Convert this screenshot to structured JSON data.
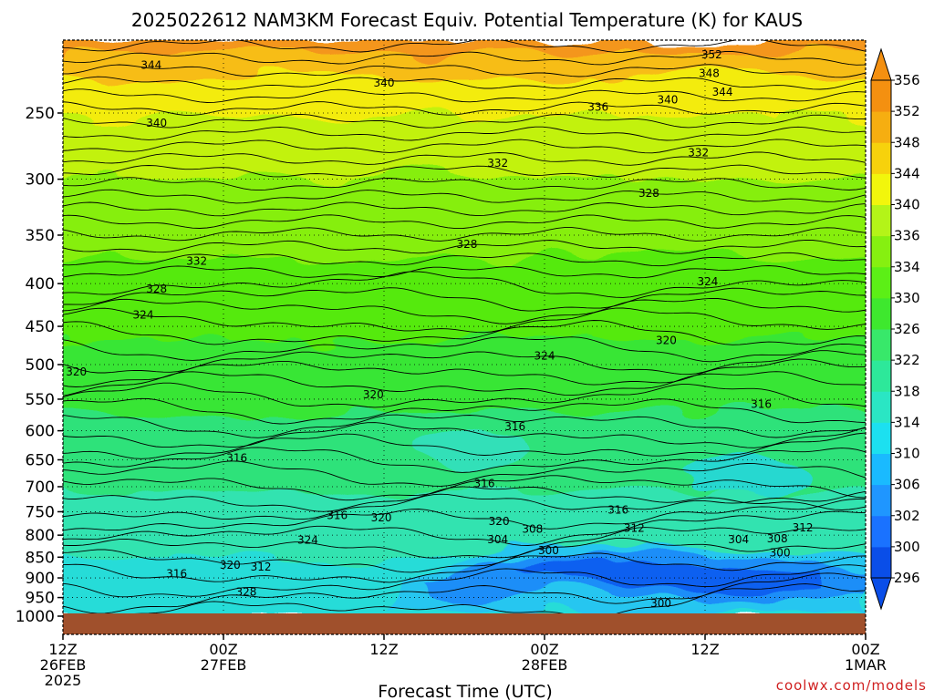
{
  "chart_data": {
    "type": "heatmap",
    "title": "2025022612 NAM3KM Forecast Equiv. Potential Temperature (K) for KAUS",
    "xlabel": "Forecast Time (UTC)",
    "ylabel": "",
    "credit": "coolwx.com/models",
    "x_ticks": [
      {
        "hours": 0,
        "lines": [
          "12Z",
          "26FEB",
          "2025"
        ]
      },
      {
        "hours": 12,
        "lines": [
          "00Z",
          "27FEB"
        ]
      },
      {
        "hours": 24,
        "lines": [
          "12Z"
        ]
      },
      {
        "hours": 36,
        "lines": [
          "00Z",
          "28FEB"
        ]
      },
      {
        "hours": 48,
        "lines": [
          "12Z"
        ]
      },
      {
        "hours": 60,
        "lines": [
          "00Z",
          "1MAR"
        ]
      }
    ],
    "x_range_hours": [
      0,
      60
    ],
    "y_ticks": [
      250,
      300,
      350,
      400,
      450,
      500,
      550,
      600,
      650,
      700,
      750,
      800,
      850,
      900,
      950,
      1000
    ],
    "y_range_hpa": [
      200,
      1000
    ],
    "colorbar": {
      "levels": [
        296,
        300,
        302,
        306,
        310,
        314,
        318,
        322,
        326,
        330,
        334,
        336,
        340,
        344,
        348,
        352,
        356
      ],
      "colors": [
        "#0a4ee8",
        "#1a72ff",
        "#1f96ff",
        "#1abaff",
        "#1ce0f0",
        "#2ae6c4",
        "#2de89a",
        "#38e86a",
        "#3ee82e",
        "#5cef16",
        "#86f010",
        "#b4f418",
        "#f2f60c",
        "#f7d20c",
        "#f6ae10",
        "#f49010"
      ]
    },
    "contour_labels": [
      {
        "value": "352",
        "t": 48.5,
        "p": 213
      },
      {
        "value": "344",
        "t": 6.6,
        "p": 219
      },
      {
        "value": "348",
        "t": 48.3,
        "p": 224
      },
      {
        "value": "340",
        "t": 24.0,
        "p": 230
      },
      {
        "value": "344",
        "t": 49.3,
        "p": 236
      },
      {
        "value": "340",
        "t": 45.2,
        "p": 241
      },
      {
        "value": "336",
        "t": 40.0,
        "p": 246
      },
      {
        "value": "340",
        "t": 7.0,
        "p": 257
      },
      {
        "value": "332",
        "t": 47.5,
        "p": 279
      },
      {
        "value": "332",
        "t": 32.5,
        "p": 287
      },
      {
        "value": "328",
        "t": 43.8,
        "p": 312
      },
      {
        "value": "328",
        "t": 30.2,
        "p": 359
      },
      {
        "value": "332",
        "t": 10.0,
        "p": 376
      },
      {
        "value": "324",
        "t": 48.2,
        "p": 398
      },
      {
        "value": "328",
        "t": 7.0,
        "p": 406
      },
      {
        "value": "324",
        "t": 6.0,
        "p": 436
      },
      {
        "value": "320",
        "t": 45.1,
        "p": 468
      },
      {
        "value": "324",
        "t": 36.0,
        "p": 488
      },
      {
        "value": "320",
        "t": 1.0,
        "p": 510
      },
      {
        "value": "320",
        "t": 23.2,
        "p": 543
      },
      {
        "value": "316",
        "t": 52.2,
        "p": 558
      },
      {
        "value": "316",
        "t": 33.8,
        "p": 593
      },
      {
        "value": "316",
        "t": 13.0,
        "p": 647
      },
      {
        "value": "316",
        "t": 31.5,
        "p": 694
      },
      {
        "value": "316",
        "t": 41.5,
        "p": 746
      },
      {
        "value": "316",
        "t": 20.5,
        "p": 758
      },
      {
        "value": "320",
        "t": 23.8,
        "p": 762
      },
      {
        "value": "320",
        "t": 32.6,
        "p": 770
      },
      {
        "value": "308",
        "t": 35.1,
        "p": 787
      },
      {
        "value": "312",
        "t": 42.7,
        "p": 785
      },
      {
        "value": "312",
        "t": 55.3,
        "p": 784
      },
      {
        "value": "324",
        "t": 18.3,
        "p": 811
      },
      {
        "value": "304",
        "t": 32.5,
        "p": 810
      },
      {
        "value": "304",
        "t": 50.5,
        "p": 810
      },
      {
        "value": "308",
        "t": 53.4,
        "p": 808
      },
      {
        "value": "300",
        "t": 36.3,
        "p": 835
      },
      {
        "value": "300",
        "t": 53.6,
        "p": 840
      },
      {
        "value": "320",
        "t": 12.5,
        "p": 869
      },
      {
        "value": "312",
        "t": 14.8,
        "p": 873
      },
      {
        "value": "316",
        "t": 8.5,
        "p": 890
      },
      {
        "value": "328",
        "t": 13.7,
        "p": 936
      },
      {
        "value": "300",
        "t": 44.7,
        "p": 966
      }
    ]
  }
}
